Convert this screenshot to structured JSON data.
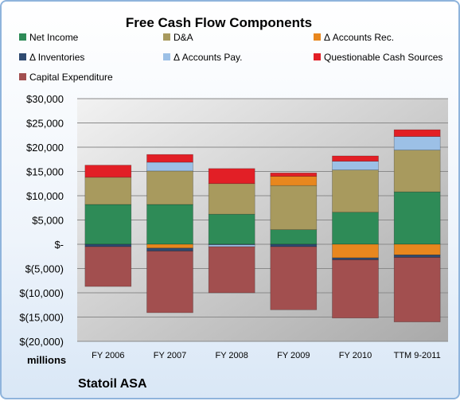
{
  "company": "Statoil ASA",
  "chart_data": {
    "type": "bar",
    "stacked": true,
    "title": "Free Cash Flow Components",
    "unit_label": "millions",
    "categories": [
      "FY 2006",
      "FY 2007",
      "FY 2008",
      "FY 2009",
      "FY 2010",
      "TTM 9-2011"
    ],
    "ylim": [
      -20000,
      30000
    ],
    "yticks": [
      30000,
      25000,
      20000,
      15000,
      10000,
      5000,
      0,
      -5000,
      -10000,
      -15000,
      -20000
    ],
    "ytick_labels": [
      "$30,000",
      "$25,000",
      "$20,000",
      "$15,000",
      "$10,000",
      "$5,000",
      "$-",
      "$(5,000)",
      "$(10,000)",
      "$(15,000)",
      "$(20,000)"
    ],
    "grid": true,
    "legend_position": "top",
    "series": [
      {
        "name": "Net Income",
        "color": "#2e8b57",
        "values": [
          8200,
          8200,
          6200,
          3000,
          6600,
          10800
        ]
      },
      {
        "name": "D&A",
        "color": "#a89a5e",
        "values": [
          5600,
          6900,
          6300,
          9100,
          8700,
          8600
        ]
      },
      {
        "name": "Δ Accounts Rec.",
        "color": "#e8871e",
        "values": [
          0,
          -800,
          0,
          1900,
          -2800,
          -2200
        ]
      },
      {
        "name": "Δ Inventories",
        "color": "#2f4a70",
        "values": [
          -500,
          -600,
          -100,
          -500,
          -400,
          -500
        ]
      },
      {
        "name": "Δ Accounts Pay.",
        "color": "#9cc0e6",
        "values": [
          0,
          1800,
          -400,
          0,
          1800,
          2800
        ]
      },
      {
        "name": "Questionable Cash Sources",
        "color": "#e21f26",
        "values": [
          2500,
          1600,
          3100,
          700,
          1100,
          1400
        ]
      },
      {
        "name": "Capital Expenditure",
        "color": "#a24f4f",
        "values": [
          -8200,
          -12700,
          -9500,
          -13000,
          -12000,
          -13300
        ]
      }
    ]
  }
}
